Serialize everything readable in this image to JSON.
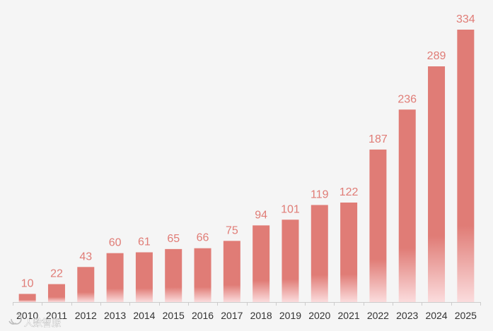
{
  "chart_data": {
    "type": "bar",
    "title": "",
    "xlabel": "",
    "ylabel": "",
    "categories": [
      "2010",
      "2011",
      "2012",
      "2013",
      "2014",
      "2015",
      "2016",
      "2017",
      "2018",
      "2019",
      "2020",
      "2021",
      "2022",
      "2023",
      "2024",
      "2025"
    ],
    "values": [
      10,
      22,
      43,
      60,
      61,
      65,
      66,
      75,
      94,
      101,
      119,
      122,
      187,
      236,
      289,
      334
    ],
    "ylim": [
      0,
      334
    ],
    "grid": false,
    "legend": "none",
    "data_labels": true
  },
  "colors": {
    "background": "#f5f5f5",
    "bar": "#e07c76",
    "bar_fade": "#fbdcdd",
    "label": "#e07c76",
    "axis": "#cccccc"
  },
  "watermark": {
    "text": "人数智服",
    "icon": "logo-swirl-icon"
  }
}
